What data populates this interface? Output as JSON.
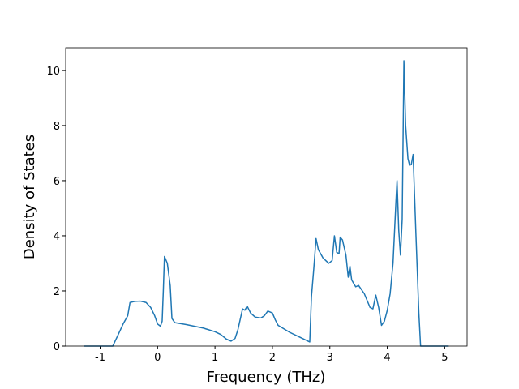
{
  "chart_data": {
    "type": "line",
    "xlabel": "Frequency (THz)",
    "ylabel": "Density of States",
    "xlim": [
      -1.6,
      5.39
    ],
    "ylim": [
      0,
      10.82
    ],
    "xticks": [
      -1,
      0,
      1,
      2,
      3,
      4,
      5
    ],
    "yticks": [
      0,
      2,
      4,
      6,
      8,
      10
    ],
    "series": [
      {
        "color": "#1f77b4",
        "x": [
          -1.28,
          -0.78,
          -0.7,
          -0.6,
          -0.52,
          -0.48,
          -0.4,
          -0.3,
          -0.2,
          -0.12,
          -0.05,
          0.0,
          0.05,
          0.08,
          0.1,
          0.12,
          0.17,
          0.22,
          0.25,
          0.3,
          0.5,
          0.8,
          1.0,
          1.1,
          1.2,
          1.28,
          1.35,
          1.4,
          1.48,
          1.52,
          1.56,
          1.62,
          1.7,
          1.8,
          1.86,
          1.92,
          2.0,
          2.05,
          2.1,
          2.3,
          2.5,
          2.65,
          2.68,
          2.72,
          2.76,
          2.8,
          2.88,
          2.98,
          3.04,
          3.08,
          3.12,
          3.16,
          3.18,
          3.22,
          3.28,
          3.32,
          3.35,
          3.38,
          3.45,
          3.5,
          3.6,
          3.7,
          3.75,
          3.8,
          3.85,
          3.9,
          3.95,
          4.0,
          4.05,
          4.1,
          4.15,
          4.17,
          4.2,
          4.23,
          4.26,
          4.29,
          4.32,
          4.36,
          4.39,
          4.42,
          4.45,
          4.5,
          4.55,
          4.58,
          5.07
        ],
        "values": [
          0,
          0,
          0.35,
          0.8,
          1.1,
          1.58,
          1.62,
          1.63,
          1.58,
          1.4,
          1.1,
          0.8,
          0.72,
          0.9,
          2.0,
          3.25,
          3.0,
          2.2,
          1.0,
          0.85,
          0.78,
          0.65,
          0.52,
          0.42,
          0.25,
          0.18,
          0.28,
          0.6,
          1.35,
          1.3,
          1.45,
          1.2,
          1.05,
          1.02,
          1.1,
          1.27,
          1.2,
          0.95,
          0.75,
          0.5,
          0.3,
          0.15,
          1.8,
          2.8,
          3.9,
          3.5,
          3.2,
          3.0,
          3.1,
          4.0,
          3.4,
          3.35,
          3.95,
          3.85,
          3.3,
          2.5,
          2.9,
          2.4,
          2.15,
          2.2,
          1.9,
          1.4,
          1.35,
          1.85,
          1.4,
          0.75,
          0.9,
          1.3,
          1.9,
          3.0,
          5.2,
          6.0,
          4.2,
          3.3,
          4.6,
          10.35,
          8.0,
          6.8,
          6.55,
          6.6,
          6.95,
          4.0,
          1.2,
          0,
          0
        ]
      }
    ]
  }
}
